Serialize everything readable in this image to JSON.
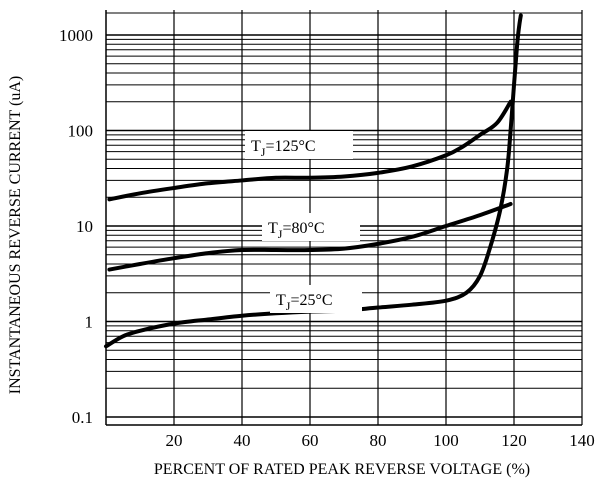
{
  "chart_data": {
    "type": "line",
    "title": "",
    "xlabel": "PERCENT OF RATED PEAK REVERSE VOLTAGE (%)",
    "ylabel": "INSTANTANEOUS REVERSE CURRENT (uA)",
    "xscale": "linear",
    "yscale": "log",
    "xlim": [
      0,
      140
    ],
    "ylim": [
      0.1,
      1600
    ],
    "xticks": [
      "20",
      "40",
      "60",
      "80",
      "100",
      "120",
      "140"
    ],
    "xtick_values": [
      20,
      40,
      60,
      80,
      100,
      120,
      140
    ],
    "yticks": [
      "0.1",
      "1",
      "10",
      "100",
      "1000"
    ],
    "ytick_values": [
      0.1,
      1,
      10,
      100,
      1000
    ],
    "grid": true,
    "legend": "inline labels",
    "colors": {
      "line": "#000000",
      "grid": "#000000",
      "background": "#ffffff"
    },
    "series": [
      {
        "label_parts": {
          "prefix": "T",
          "sub": "J",
          "suffix": "=125°C"
        },
        "x": [
          1,
          10,
          20,
          30,
          40,
          50,
          60,
          70,
          80,
          90,
          100,
          105,
          110,
          115,
          119
        ],
        "y": [
          19,
          22,
          25,
          28,
          30,
          32,
          32,
          33,
          36,
          42,
          55,
          68,
          90,
          120,
          200
        ]
      },
      {
        "label_parts": {
          "prefix": "T",
          "sub": "J",
          "suffix": "=80°C"
        },
        "x": [
          1,
          10,
          20,
          30,
          40,
          50,
          60,
          70,
          80,
          90,
          100,
          110,
          119
        ],
        "y": [
          3.5,
          4.0,
          4.6,
          5.2,
          5.6,
          5.6,
          5.6,
          5.8,
          6.5,
          7.7,
          10,
          13,
          17
        ]
      },
      {
        "label_parts": {
          "prefix": "T",
          "sub": "J",
          "suffix": "=25°C"
        },
        "x": [
          0,
          5,
          10,
          20,
          30,
          40,
          50,
          60,
          70,
          80,
          90,
          100,
          106,
          110,
          113,
          116,
          118,
          119,
          120,
          120.8,
          121.2,
          121.6,
          122
        ],
        "y": [
          0.55,
          0.7,
          0.8,
          0.95,
          1.05,
          1.15,
          1.22,
          1.27,
          1.3,
          1.4,
          1.5,
          1.65,
          2.0,
          3.0,
          6,
          15,
          40,
          100,
          300,
          700,
          1000,
          1300,
          1600
        ]
      }
    ]
  }
}
